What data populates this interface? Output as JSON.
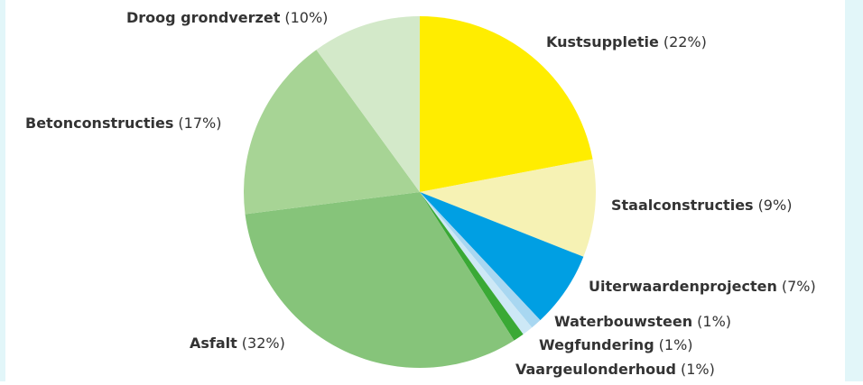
{
  "chart_data": {
    "type": "pie",
    "categories": [
      "Kustsuppletie",
      "Staalconstructies",
      "Uiterwaardenprojecten",
      "Waterbouwsteen",
      "Wegfundering",
      "Vaargeulonderhoud",
      "Asfalt",
      "Betonconstructies",
      "Droog grondverzet"
    ],
    "values": [
      22,
      9,
      7,
      1,
      1,
      1,
      32,
      17,
      10
    ],
    "value_labels": [
      "(22%)",
      "(9%)",
      "(7%)",
      "(1%)",
      "(1%)",
      "(1%)",
      "(32%)",
      "(17%)",
      "(10%)"
    ],
    "colors": [
      "#ffed00",
      "#f6f2b4",
      "#009fe3",
      "#a8d7f1",
      "#cde8f6",
      "#3aa935",
      "#86c47a",
      "#a7d495",
      "#d3e9c9"
    ]
  }
}
